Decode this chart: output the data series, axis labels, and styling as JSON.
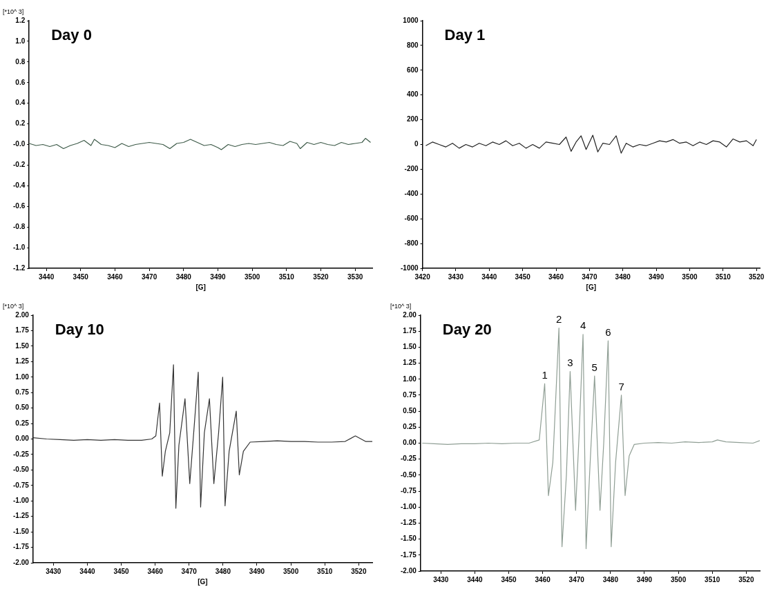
{
  "chart_data": [
    {
      "type": "line",
      "title": "Day 0",
      "ylabel": "[*10^ 3]",
      "xlabel": "[G]",
      "xlim": [
        3435,
        3535
      ],
      "xticks": [
        3440,
        3450,
        3460,
        3470,
        3480,
        3490,
        3500,
        3510,
        3520,
        3530
      ],
      "ylim": [
        -1.2,
        1.2
      ],
      "yticks": [
        -1.2,
        {
          "value": -1,
          "label": "-1.0"
        },
        -0.8,
        -0.6,
        -0.4,
        -0.2,
        {
          "value": 0,
          "label": "-0.0"
        },
        0.2,
        0.4,
        0.6,
        0.8,
        {
          "value": 1,
          "label": "1.0"
        },
        1.2
      ],
      "grid": false,
      "legend": false,
      "marker": "none",
      "line_style": "solid",
      "series": [
        {
          "color": "#3d5a48",
          "x": [
            3435,
            3437,
            3439,
            3441,
            3443,
            3445,
            3447,
            3449,
            3451,
            3453,
            3454,
            3456,
            3458,
            3460,
            3462,
            3464,
            3466,
            3468,
            3470,
            3472,
            3474,
            3476,
            3478,
            3480,
            3482,
            3484,
            3486,
            3488,
            3490,
            3491,
            3493,
            3495,
            3497,
            3499,
            3501,
            3503,
            3505,
            3507,
            3509,
            3511,
            3513,
            3514,
            3516,
            3518,
            3520,
            3522,
            3524,
            3526,
            3528,
            3530,
            3532,
            3533,
            3534.5
          ],
          "values": [
            0.01,
            -0.01,
            0.0,
            -0.02,
            0.0,
            -0.04,
            -0.01,
            0.01,
            0.04,
            -0.01,
            0.05,
            0.0,
            -0.01,
            -0.03,
            0.01,
            -0.02,
            0.0,
            0.01,
            0.02,
            0.01,
            0.0,
            -0.04,
            0.01,
            0.02,
            0.05,
            0.02,
            -0.01,
            0.0,
            -0.03,
            -0.05,
            0.0,
            -0.02,
            0.0,
            0.01,
            0.0,
            0.01,
            0.02,
            0.0,
            -0.01,
            0.03,
            0.01,
            -0.04,
            0.02,
            0.0,
            0.02,
            0.0,
            -0.01,
            0.02,
            0.0,
            0.01,
            0.02,
            0.06,
            0.02
          ]
        }
      ]
    },
    {
      "type": "line",
      "title": "Day 1",
      "xlabel": "[G]",
      "xlim": [
        3420,
        3521
      ],
      "xticks": [
        3420,
        3430,
        3440,
        3450,
        3460,
        3470,
        3480,
        3490,
        3500,
        3510,
        3520
      ],
      "ylim": [
        -1000,
        1000
      ],
      "yticks": [
        -1000,
        -800,
        -600,
        -400,
        -200,
        0,
        200,
        400,
        600,
        800,
        1000
      ],
      "grid": false,
      "legend": false,
      "marker": "none",
      "line_style": "solid",
      "series": [
        {
          "color": "#222222",
          "x": [
            3421,
            3423,
            3425,
            3427,
            3429,
            3431,
            3433,
            3435,
            3437,
            3439,
            3441,
            3443,
            3445,
            3447,
            3449,
            3451,
            3453,
            3455,
            3457,
            3459,
            3461,
            3463,
            3464.5,
            3466,
            3467.5,
            3469,
            3471,
            3472.5,
            3474,
            3476,
            3478,
            3479.5,
            3481,
            3483,
            3485,
            3487,
            3489,
            3491,
            3493,
            3495,
            3497,
            3499,
            3501,
            3503,
            3505,
            3507,
            3509,
            3511,
            3513,
            3515,
            3517,
            3519,
            3520
          ],
          "values": [
            -10,
            20,
            0,
            -20,
            10,
            -30,
            0,
            -20,
            10,
            -10,
            20,
            0,
            30,
            -10,
            10,
            -30,
            0,
            -30,
            20,
            10,
            0,
            60,
            -55,
            20,
            70,
            -40,
            75,
            -60,
            10,
            0,
            70,
            -70,
            10,
            -20,
            0,
            -10,
            10,
            30,
            20,
            40,
            10,
            20,
            -10,
            20,
            0,
            30,
            20,
            -20,
            45,
            20,
            30,
            -10,
            40
          ]
        }
      ]
    },
    {
      "type": "line",
      "title": "Day 10",
      "ylabel": "[*10^ 3]",
      "xlabel": "[G]",
      "xlim": [
        3424,
        3524
      ],
      "xticks": [
        3430,
        3440,
        3450,
        3460,
        3470,
        3480,
        3490,
        3500,
        3510,
        3520
      ],
      "ylim": [
        -2,
        2
      ],
      "yticks": [
        {
          "value": -2,
          "label": "-2.00"
        },
        -1.75,
        {
          "value": -1.5,
          "label": "-1.50"
        },
        -1.25,
        {
          "value": -1,
          "label": "-1.00"
        },
        -0.75,
        {
          "value": -0.5,
          "label": "-0.50"
        },
        -0.25,
        {
          "value": 0,
          "label": "0.00"
        },
        0.25,
        {
          "value": 0.5,
          "label": "0.50"
        },
        0.75,
        {
          "value": 1,
          "label": "1.00"
        },
        1.25,
        {
          "value": 1.5,
          "label": "1.50"
        },
        1.75,
        {
          "value": 2,
          "label": "2.00"
        }
      ],
      "grid": false,
      "legend": false,
      "marker": "none",
      "line_style": "solid",
      "series": [
        {
          "color": "#333333",
          "x": [
            3424,
            3428,
            3432,
            3436,
            3440,
            3444,
            3448,
            3452,
            3456,
            3459,
            3460.2,
            3461.3,
            3462.1,
            3463,
            3464.3,
            3465.4,
            3466.1,
            3467,
            3468.8,
            3470.2,
            3471.5,
            3472.7,
            3473.4,
            3474.5,
            3476.0,
            3477.3,
            3478.7,
            3479.9,
            3480.6,
            3481.8,
            3483.9,
            3484.8,
            3486,
            3488,
            3492,
            3496,
            3500,
            3504,
            3508,
            3512,
            3516,
            3519,
            3522,
            3524
          ],
          "values": [
            0.02,
            0.0,
            -0.01,
            -0.02,
            -0.01,
            -0.02,
            -0.01,
            -0.02,
            -0.02,
            0.0,
            0.05,
            0.58,
            -0.6,
            -0.2,
            0.1,
            1.2,
            -1.12,
            -0.1,
            0.65,
            -0.72,
            0.2,
            1.08,
            -1.1,
            0.1,
            0.65,
            -0.72,
            0.1,
            1.0,
            -1.08,
            -0.2,
            0.45,
            -0.58,
            -0.2,
            -0.05,
            -0.04,
            -0.03,
            -0.04,
            -0.04,
            -0.05,
            -0.05,
            -0.04,
            0.05,
            -0.04,
            -0.04
          ]
        }
      ]
    },
    {
      "type": "line",
      "title": "Day 20",
      "ylabel": "[*10^ 3]",
      "xlim": [
        3424,
        3524
      ],
      "xticks": [
        3430,
        3440,
        3450,
        3460,
        3470,
        3480,
        3490,
        3500,
        3510,
        3520
      ],
      "ylim": [
        -2,
        2
      ],
      "yticks": [
        {
          "value": -2,
          "label": "-2.00"
        },
        -1.75,
        {
          "value": -1.5,
          "label": "-1.50"
        },
        -1.25,
        {
          "value": -1,
          "label": "-1.00"
        },
        -0.75,
        {
          "value": -0.5,
          "label": "-0.50"
        },
        -0.25,
        {
          "value": 0,
          "label": "0.00"
        },
        0.25,
        {
          "value": 0.5,
          "label": "0.50"
        },
        0.75,
        {
          "value": 1,
          "label": "1.00"
        },
        1.25,
        {
          "value": 1.5,
          "label": "1.50"
        },
        1.75,
        {
          "value": 2,
          "label": "2.00"
        }
      ],
      "grid": false,
      "legend": false,
      "marker": "none",
      "line_style": "solid",
      "annotations": [
        {
          "text": "1",
          "x": 3460.6,
          "y": 0.93
        },
        {
          "text": "2",
          "x": 3464.8,
          "y": 1.8
        },
        {
          "text": "3",
          "x": 3468.1,
          "y": 1.12
        },
        {
          "text": "4",
          "x": 3471.9,
          "y": 1.7
        },
        {
          "text": "5",
          "x": 3475.3,
          "y": 1.05
        },
        {
          "text": "6",
          "x": 3479.3,
          "y": 1.6
        },
        {
          "text": "7",
          "x": 3483.2,
          "y": 0.75
        }
      ],
      "series": [
        {
          "color": "#8f9e94",
          "x": [
            3424.5,
            3428,
            3432,
            3436,
            3440,
            3444,
            3448,
            3452,
            3456,
            3459,
            3460.6,
            3461.7,
            3463,
            3464.8,
            3465.7,
            3467,
            3468.1,
            3469.7,
            3470.8,
            3471.9,
            3472.8,
            3474,
            3475.3,
            3476.9,
            3478,
            3479.3,
            3480.2,
            3481.5,
            3483.2,
            3484.3,
            3485.5,
            3487,
            3490,
            3494,
            3498,
            3502,
            3506,
            3510,
            3511.5,
            3514,
            3518,
            3522,
            3524
          ],
          "values": [
            0.0,
            -0.01,
            -0.02,
            -0.01,
            -0.01,
            0.0,
            -0.01,
            0.0,
            0.0,
            0.05,
            0.93,
            -0.82,
            -0.3,
            1.8,
            -1.62,
            -0.5,
            1.12,
            -1.05,
            0.2,
            1.7,
            -1.65,
            -0.3,
            1.05,
            -1.05,
            0.0,
            1.6,
            -1.62,
            -0.3,
            0.75,
            -0.82,
            -0.2,
            -0.02,
            0.0,
            0.01,
            0.0,
            0.02,
            0.01,
            0.02,
            0.05,
            0.02,
            0.01,
            0.0,
            0.04
          ]
        }
      ]
    }
  ]
}
